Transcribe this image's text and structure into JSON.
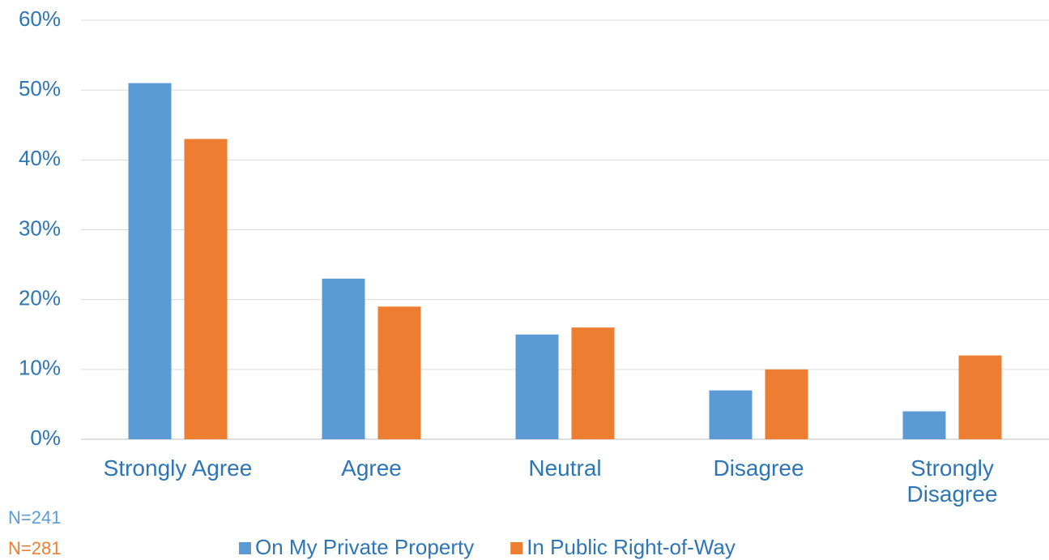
{
  "chart_data": {
    "type": "bar",
    "categories": [
      "Strongly Agree",
      "Agree",
      "Neutral",
      "Disagree",
      "Strongly Disagree"
    ],
    "series": [
      {
        "name": "On My Private Property",
        "color": "#5b9bd5",
        "values": [
          51,
          23,
          15,
          7,
          4
        ]
      },
      {
        "name": "In Public Right-of-Way",
        "color": "#ed7d31",
        "values": [
          43,
          19,
          16,
          10,
          12
        ]
      }
    ],
    "ylim": [
      0,
      60
    ],
    "yticks": [
      {
        "value": 0,
        "label": "0%"
      },
      {
        "value": 10,
        "label": "10%"
      },
      {
        "value": 20,
        "label": "20%"
      },
      {
        "value": 30,
        "label": "30%"
      },
      {
        "value": 40,
        "label": "40%"
      },
      {
        "value": 50,
        "label": "50%"
      },
      {
        "value": 60,
        "label": "60%"
      }
    ],
    "grid": true,
    "legend": "bottom",
    "annotations": [
      {
        "text": "N=241",
        "color": "#5b9bd5"
      },
      {
        "text": "N=281",
        "color": "#ed7d31"
      }
    ]
  }
}
